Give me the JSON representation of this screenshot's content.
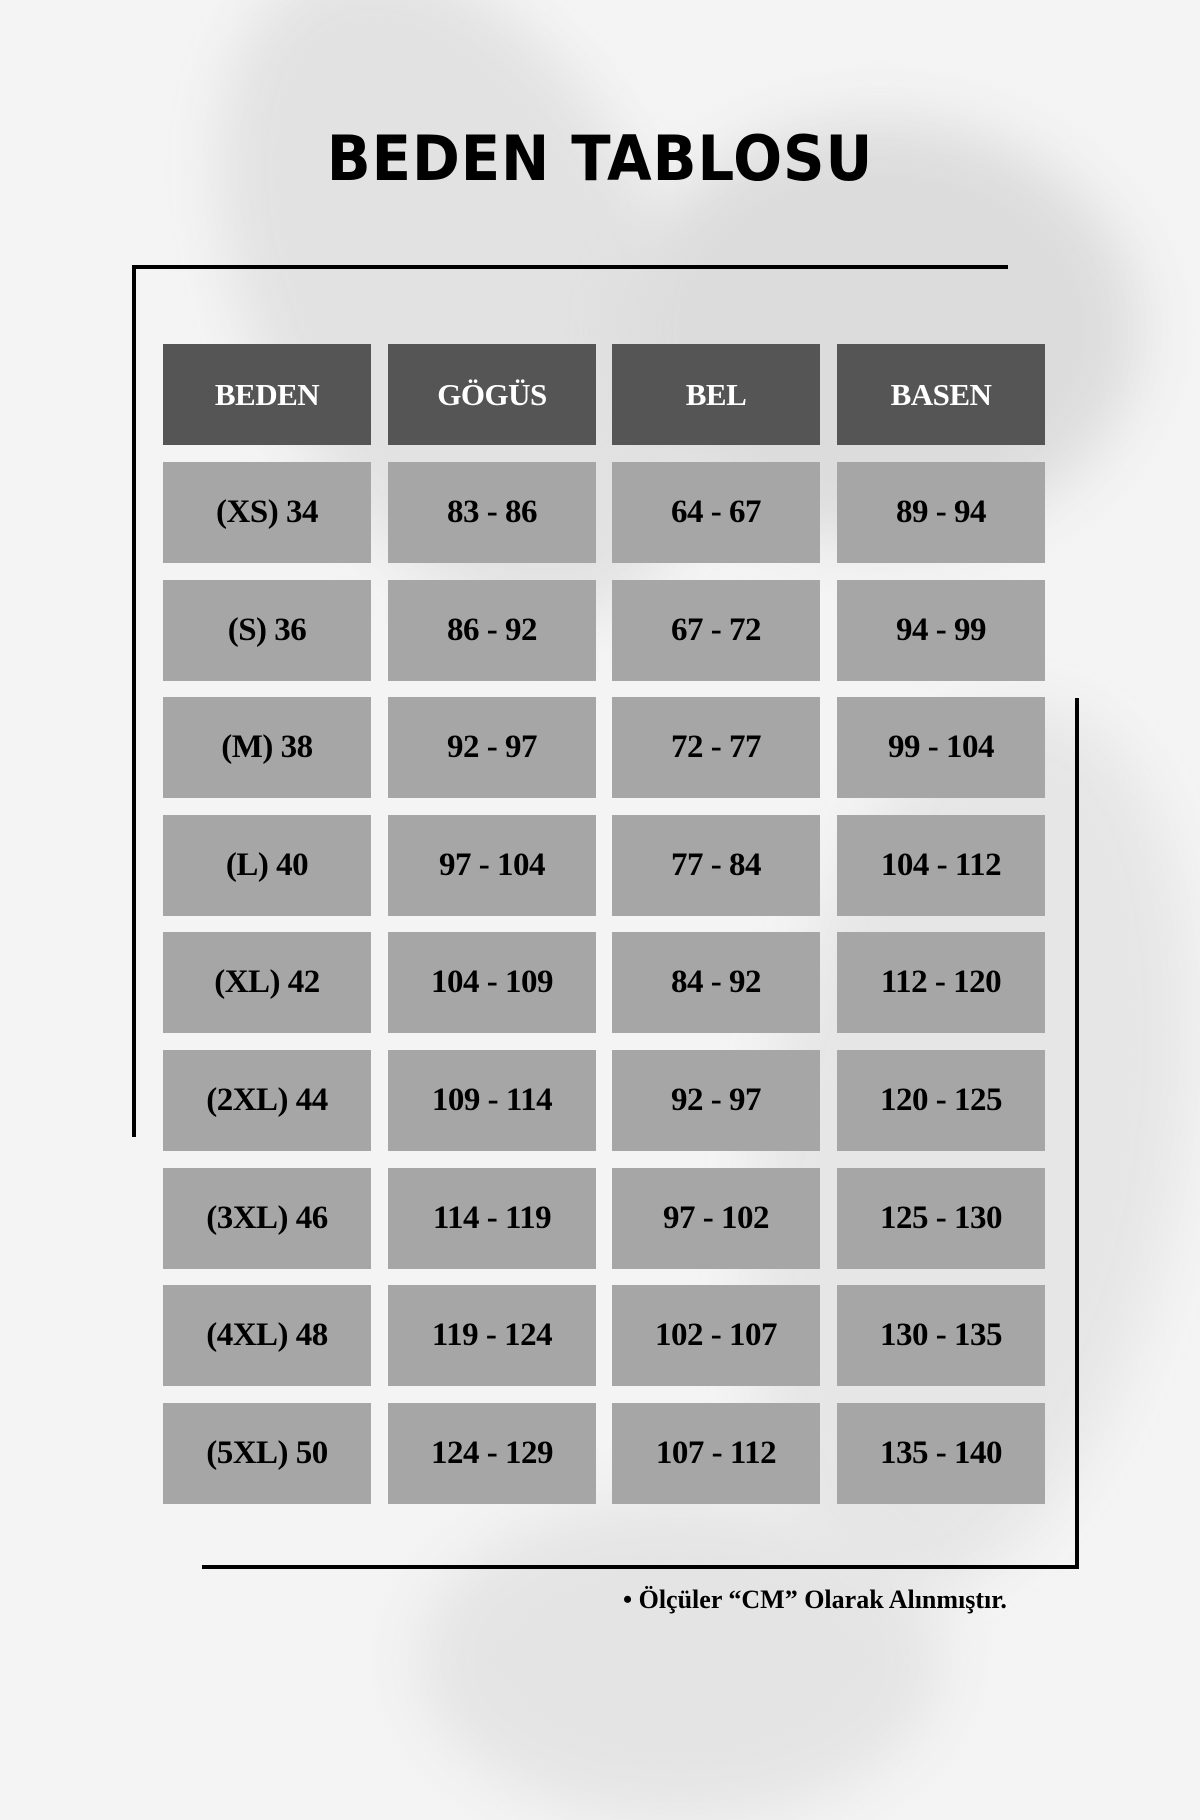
{
  "title": "BEDEN TABLOSU",
  "colors": {
    "header_bg": "#555555",
    "cell_bg": "#a6a6a6",
    "header_text": "#ffffff",
    "cell_text": "#000000"
  },
  "table": {
    "headers": [
      "BEDEN",
      "GÖGÜS",
      "BEL",
      "BASEN"
    ],
    "rows": [
      [
        "(XS) 34",
        "83 - 86",
        "64 - 67",
        "89 - 94"
      ],
      [
        "(S) 36",
        "86 - 92",
        "67 - 72",
        "94 - 99"
      ],
      [
        "(M) 38",
        "92 - 97",
        "72 - 77",
        "99 - 104"
      ],
      [
        "(L) 40",
        "97 - 104",
        "77 - 84",
        "104 - 112"
      ],
      [
        "(XL) 42",
        "104 - 109",
        "84 - 92",
        "112 - 120"
      ],
      [
        "(2XL) 44",
        "109 - 114",
        "92 - 97",
        "120 - 125"
      ],
      [
        "(3XL) 46",
        "114 - 119",
        "97 - 102",
        "125 - 130"
      ],
      [
        "(4XL) 48",
        "119 - 124",
        "102 - 107",
        "130 - 135"
      ],
      [
        "(5XL) 50",
        "124 - 129",
        "107 - 112",
        "135 - 140"
      ]
    ]
  },
  "footnote": "• Ölçüler “CM” Olarak Alınmıştır."
}
